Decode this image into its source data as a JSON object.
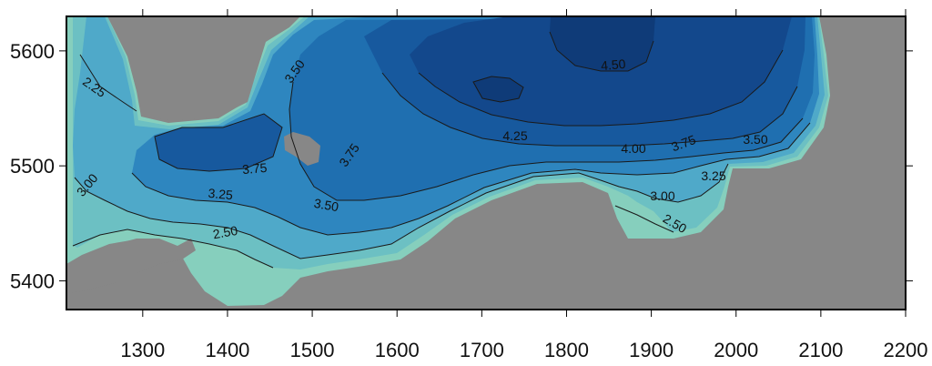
{
  "map": {
    "x_axis": {
      "ticks": [
        {
          "value": 1300,
          "label": "1300"
        },
        {
          "value": 1400,
          "label": "1400"
        },
        {
          "value": 1500,
          "label": "1500"
        },
        {
          "value": 1600,
          "label": "1600"
        },
        {
          "value": 1700,
          "label": "1700"
        },
        {
          "value": 1800,
          "label": "1800"
        },
        {
          "value": 1900,
          "label": "1900"
        },
        {
          "value": 2000,
          "label": "2000"
        },
        {
          "value": 2100,
          "label": "2100"
        },
        {
          "value": 2200,
          "label": "2200"
        }
      ]
    },
    "y_axis": {
      "ticks": [
        {
          "value": 5600,
          "label": "5600"
        },
        {
          "value": 5500,
          "label": "5500"
        },
        {
          "value": 5400,
          "label": "5400"
        }
      ]
    },
    "contour_labels": [
      "2.25",
      "2.50",
      "3.00",
      "3.25",
      "3.50",
      "3.75",
      "4.00",
      "4.25",
      "4.50"
    ],
    "colors": {
      "land": "#878787",
      "level_low": "#8fd3bb",
      "level_mid": "#2a7ab8",
      "level_high": "#0d3f7a"
    }
  }
}
